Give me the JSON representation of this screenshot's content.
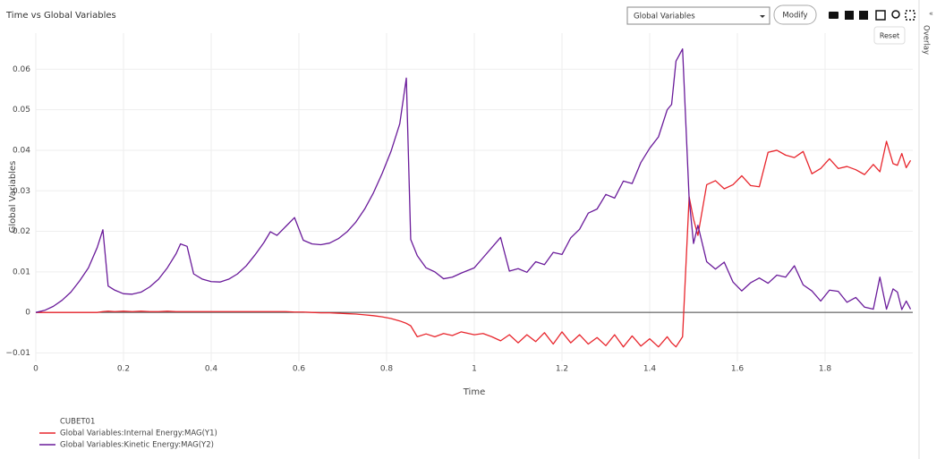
{
  "ui": {
    "dropdown": "Global Variables",
    "button": "Modify",
    "tooltip": "Reset",
    "sidebar": "Overlay"
  },
  "chart_data": {
    "type": "line",
    "title": "Time vs Global Variables",
    "x_label": "Time",
    "y_label": "Global Variables",
    "legend_title": "CUBET01",
    "grid": true,
    "x": [
      0,
      0.02,
      0.04,
      0.06,
      0.08,
      0.1,
      0.12,
      0.14,
      0.153,
      0.165,
      0.18,
      0.2,
      0.22,
      0.24,
      0.26,
      0.28,
      0.3,
      0.32,
      0.33,
      0.345,
      0.36,
      0.38,
      0.4,
      0.42,
      0.44,
      0.46,
      0.48,
      0.5,
      0.52,
      0.535,
      0.55,
      0.57,
      0.59,
      0.61,
      0.63,
      0.65,
      0.67,
      0.69,
      0.71,
      0.73,
      0.75,
      0.77,
      0.79,
      0.81,
      0.83,
      0.845,
      0.855,
      0.87,
      0.89,
      0.91,
      0.93,
      0.95,
      0.97,
      1.0,
      1.02,
      1.04,
      1.06,
      1.08,
      1.1,
      1.12,
      1.14,
      1.16,
      1.18,
      1.2,
      1.22,
      1.24,
      1.26,
      1.28,
      1.3,
      1.32,
      1.34,
      1.36,
      1.38,
      1.4,
      1.42,
      1.44,
      1.45,
      1.46,
      1.475,
      1.49,
      1.5,
      1.51,
      1.53,
      1.55,
      1.57,
      1.59,
      1.61,
      1.63,
      1.65,
      1.67,
      1.69,
      1.71,
      1.73,
      1.75,
      1.77,
      1.79,
      1.81,
      1.83,
      1.85,
      1.87,
      1.89,
      1.91,
      1.925,
      1.94,
      1.955,
      1.965,
      1.975,
      1.985,
      1.995
    ],
    "series": [
      {
        "name": "Global Variables:Internal Energy:MAG(Y1)",
        "color": "#e8262d",
        "values": [
          0,
          0,
          0,
          0,
          0,
          0,
          0,
          0,
          0.0002,
          0.0003,
          0.0002,
          0.0003,
          0.0002,
          0.0003,
          0.0002,
          0.0002,
          0.0003,
          0.0002,
          0.0002,
          0.0002,
          0.0002,
          0.0002,
          0.0002,
          0.0002,
          0.0002,
          0.0002,
          0.0002,
          0.0002,
          0.0002,
          0.0002,
          0.0002,
          0.0002,
          0.0001,
          0.0001,
          0,
          -0.0001,
          -0.0001,
          -0.0002,
          -0.0003,
          -0.0004,
          -0.0006,
          -0.0008,
          -0.0011,
          -0.0015,
          -0.0021,
          -0.0027,
          -0.0033,
          -0.006,
          -0.0053,
          -0.006,
          -0.0052,
          -0.0057,
          -0.0048,
          -0.0055,
          -0.0052,
          -0.006,
          -0.007,
          -0.0055,
          -0.0075,
          -0.0055,
          -0.0072,
          -0.005,
          -0.0078,
          -0.0048,
          -0.0075,
          -0.0055,
          -0.0078,
          -0.0062,
          -0.0082,
          -0.0055,
          -0.0085,
          -0.0058,
          -0.0083,
          -0.0065,
          -0.0085,
          -0.006,
          -0.0075,
          -0.0085,
          -0.006,
          0.0285,
          0.023,
          0.019,
          0.0315,
          0.0325,
          0.0305,
          0.0315,
          0.0337,
          0.0313,
          0.031,
          0.0395,
          0.04,
          0.0388,
          0.0382,
          0.0397,
          0.0342,
          0.0355,
          0.0379,
          0.0355,
          0.036,
          0.0352,
          0.034,
          0.0365,
          0.0347,
          0.0422,
          0.0367,
          0.0363,
          0.0392,
          0.0357,
          0.0375
        ]
      },
      {
        "name": "Global Variables:Kinetic Energy:MAG(Y2)",
        "color": "#6a1b9a",
        "values": [
          0,
          0.0005,
          0.0015,
          0.003,
          0.005,
          0.0078,
          0.011,
          0.016,
          0.0204,
          0.0065,
          0.0055,
          0.0046,
          0.0045,
          0.005,
          0.0063,
          0.0082,
          0.011,
          0.0145,
          0.0169,
          0.0163,
          0.0095,
          0.0082,
          0.0076,
          0.0075,
          0.0082,
          0.0095,
          0.0115,
          0.0142,
          0.0172,
          0.0199,
          0.019,
          0.0212,
          0.0234,
          0.0178,
          0.0169,
          0.0167,
          0.0171,
          0.0182,
          0.0199,
          0.0223,
          0.0255,
          0.0295,
          0.0343,
          0.0397,
          0.0465,
          0.0578,
          0.018,
          0.014,
          0.011,
          0.01,
          0.0083,
          0.0087,
          0.0097,
          0.011,
          0.0135,
          0.016,
          0.0185,
          0.0102,
          0.0108,
          0.0099,
          0.0125,
          0.0118,
          0.0148,
          0.0143,
          0.0184,
          0.0205,
          0.0245,
          0.0255,
          0.0291,
          0.0282,
          0.0324,
          0.0318,
          0.037,
          0.0405,
          0.0433,
          0.05,
          0.0513,
          0.062,
          0.065,
          0.028,
          0.017,
          0.0215,
          0.0125,
          0.0107,
          0.0124,
          0.0075,
          0.0053,
          0.0073,
          0.0085,
          0.0072,
          0.0092,
          0.0087,
          0.0115,
          0.0068,
          0.0053,
          0.0028,
          0.0055,
          0.0052,
          0.0025,
          0.0037,
          0.0013,
          0.0008,
          0.0087,
          0.0008,
          0.0058,
          0.005,
          0.0007,
          0.0028,
          0.0008
        ]
      }
    ],
    "xlim": [
      0,
      2
    ],
    "ylim": [
      -0.0121,
      0.0689
    ],
    "xticks": [
      0,
      0.2,
      0.4,
      0.6,
      0.8,
      1,
      1.2,
      1.4,
      1.6,
      1.8
    ],
    "yticks": [
      {
        "value": -0.01,
        "label": "−0.01"
      },
      0,
      0.01,
      0.02,
      0.03,
      0.04,
      0.05,
      0.06
    ]
  }
}
